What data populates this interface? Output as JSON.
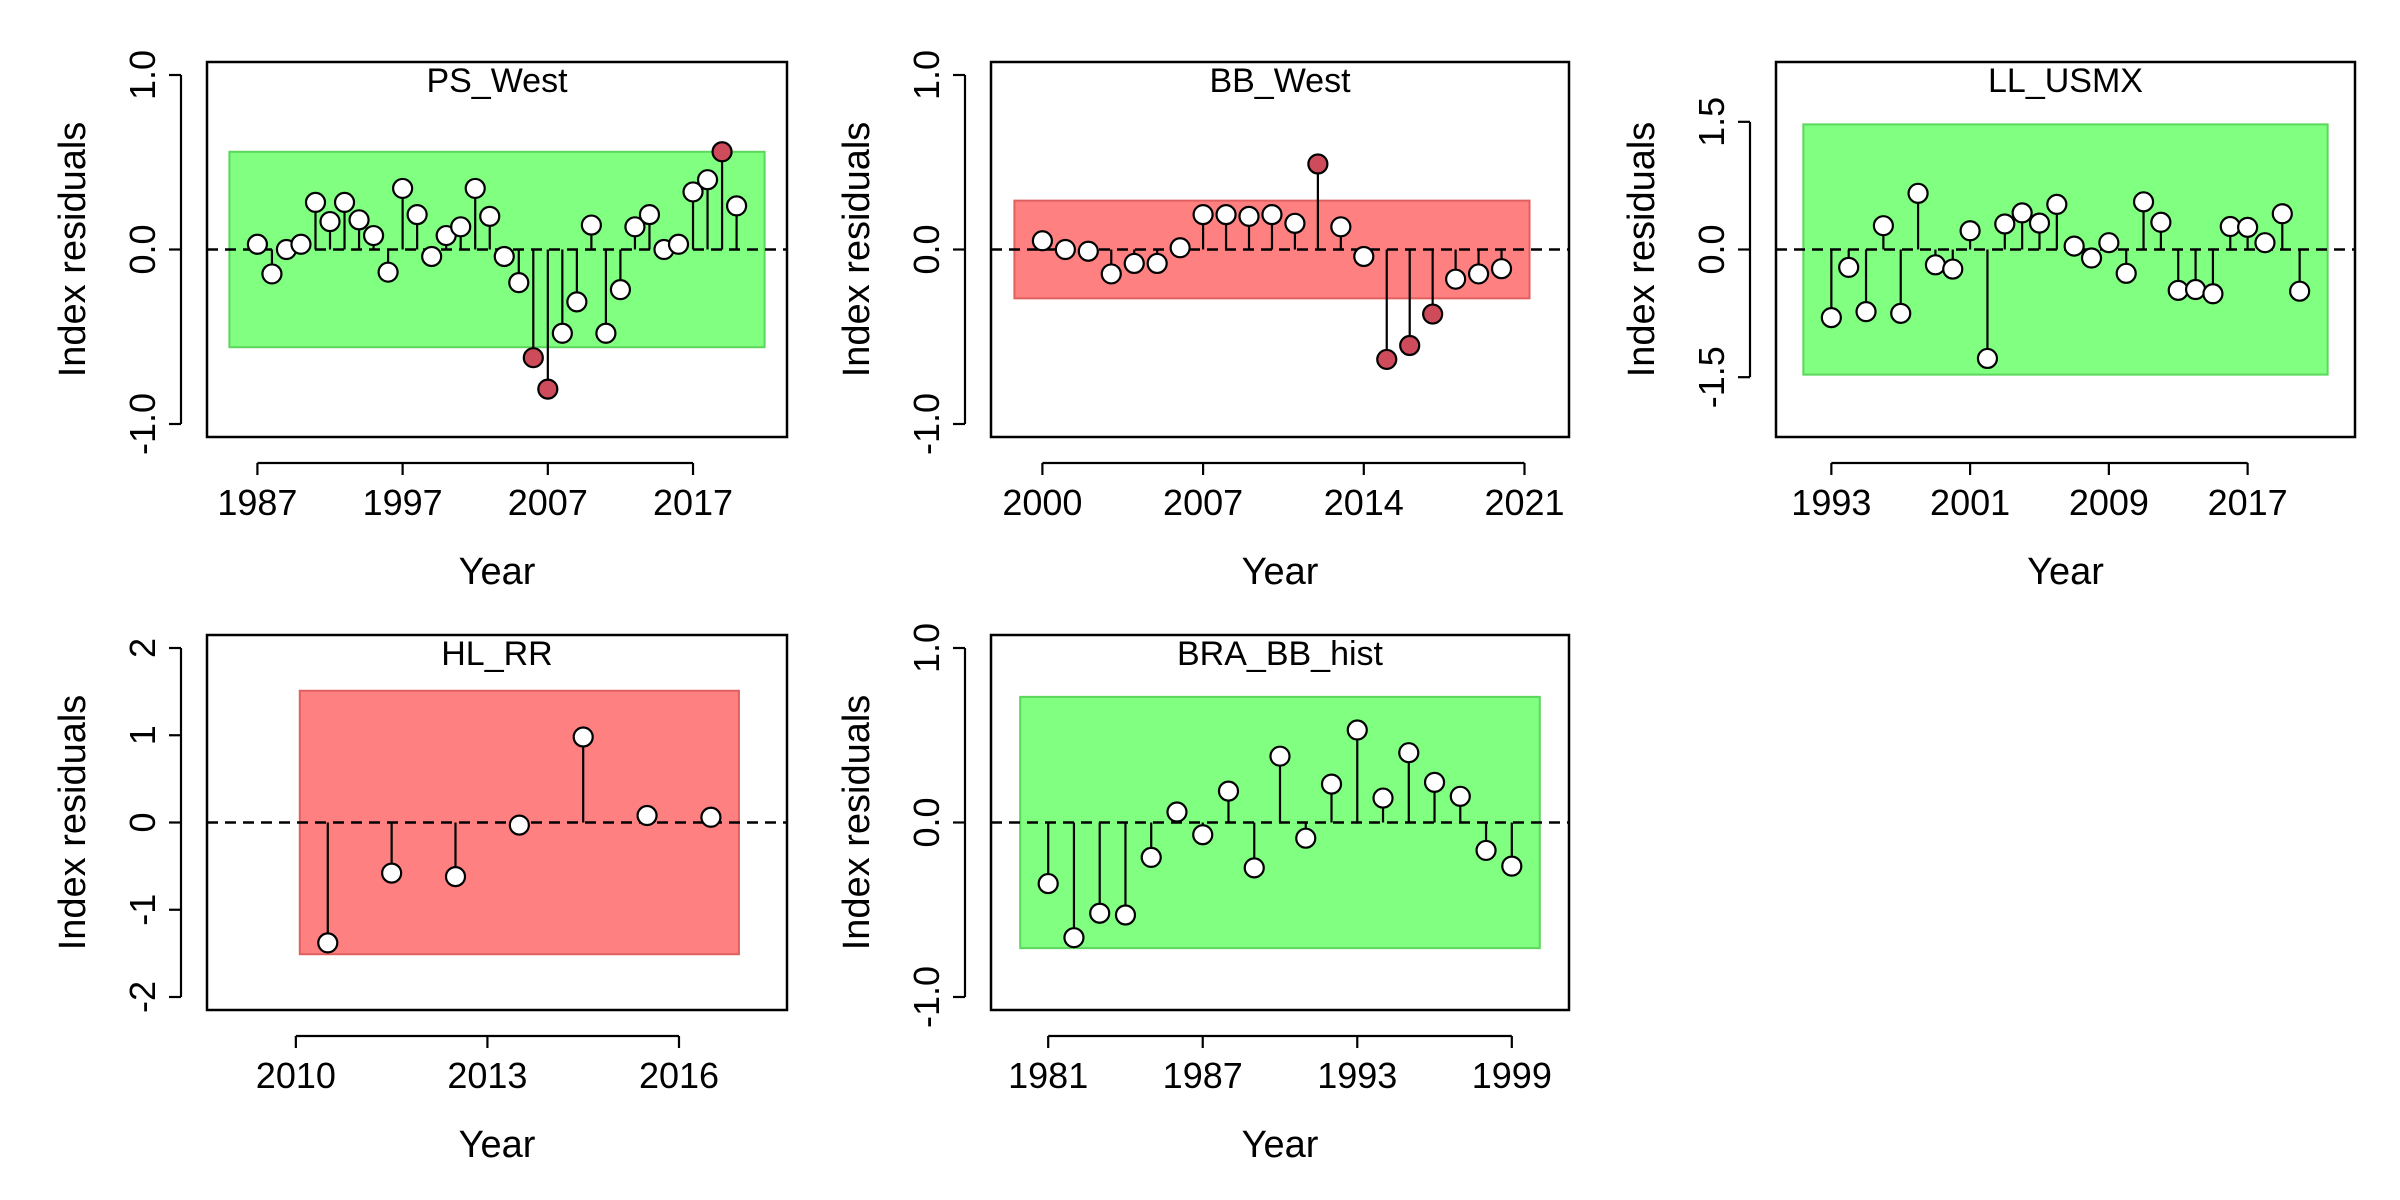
{
  "colors": {
    "pass_fill": "#80FF80",
    "pass_border": "#5CD65C",
    "fail_fill": "#FF8080",
    "fail_border": "#E06060",
    "point_ok": "#FFFFFF",
    "point_outlier": "#CD4B5A"
  },
  "common": {
    "xlabel": "Year",
    "ylabel": "Index residuals"
  },
  "chart_data": [
    {
      "type": "scatter",
      "title": "PS_West",
      "xlabel": "Year",
      "ylabel": "Index residuals",
      "xlim": [
        1985.25,
        2021.75
      ],
      "ylim": [
        -1.0,
        1.0
      ],
      "yticks": [
        "-1.0",
        "0.0",
        "1.0"
      ],
      "xticks": [
        1987,
        1997,
        2007,
        2017
      ],
      "band": 0.56,
      "test": "pass",
      "grid": false,
      "x": [
        1987,
        1988,
        1989,
        1990,
        1991,
        1992,
        1993,
        1994,
        1995,
        1996,
        1997,
        1998,
        1999,
        2000,
        2001,
        2002,
        2003,
        2004,
        2005,
        2006,
        2007,
        2008,
        2009,
        2010,
        2011,
        2012,
        2013,
        2014,
        2015,
        2016,
        2017,
        2018,
        2019,
        2020
      ],
      "values": [
        0.03,
        -0.14,
        0.0,
        0.03,
        0.27,
        0.16,
        0.27,
        0.17,
        0.08,
        -0.13,
        0.35,
        0.2,
        -0.04,
        0.08,
        0.13,
        0.35,
        0.19,
        -0.04,
        -0.19,
        -0.62,
        -0.8,
        -0.48,
        -0.3,
        0.14,
        -0.48,
        -0.23,
        0.13,
        0.2,
        0.0,
        0.03,
        0.33,
        0.4,
        0.56,
        0.25
      ],
      "outliers": [
        19,
        20,
        32
      ]
    },
    {
      "type": "scatter",
      "title": "BB_West",
      "xlabel": "Year",
      "ylabel": "Index residuals",
      "xlim": [
        1998.85,
        2021.85
      ],
      "ylim": [
        -1.0,
        1.0
      ],
      "yticks": [
        "-1.0",
        "0.0",
        "1.0"
      ],
      "xticks": [
        2000,
        2007,
        2014,
        2021
      ],
      "band": 0.28,
      "test": "fail",
      "grid": false,
      "x": [
        2000,
        2001,
        2002,
        2003,
        2004,
        2005,
        2006,
        2007,
        2008,
        2009,
        2010,
        2011,
        2012,
        2013,
        2014,
        2015,
        2016,
        2017,
        2018,
        2019,
        2020
      ],
      "values": [
        0.05,
        0.0,
        -0.01,
        -0.14,
        -0.08,
        -0.08,
        0.01,
        0.2,
        0.2,
        0.19,
        0.2,
        0.15,
        0.49,
        0.13,
        -0.04,
        -0.63,
        -0.55,
        -0.37,
        -0.17,
        -0.14,
        -0.11
      ],
      "outliers": [
        12,
        15,
        16,
        17
      ]
    },
    {
      "type": "scatter",
      "title": "LL_USMX",
      "xlabel": "Year",
      "ylabel": "Index residuals",
      "xlim": [
        1991.25,
        2021.75
      ],
      "ylim": [
        -2.05,
        2.05
      ],
      "yticks": [
        "-1.5",
        "0.0",
        "1.5"
      ],
      "xticks": [
        1993,
        2001,
        2009,
        2017
      ],
      "band": 1.47,
      "test": "pass",
      "grid": false,
      "x": [
        1993,
        1994,
        1995,
        1996,
        1997,
        1998,
        1999,
        2000,
        2001,
        2002,
        2003,
        2004,
        2005,
        2006,
        2007,
        2008,
        2009,
        2010,
        2011,
        2012,
        2013,
        2014,
        2015,
        2016,
        2017,
        2018,
        2019,
        2020
      ],
      "values": [
        -0.8,
        -0.21,
        -0.73,
        0.28,
        -0.75,
        0.66,
        -0.18,
        -0.23,
        0.22,
        -1.28,
        0.3,
        0.43,
        0.31,
        0.53,
        0.04,
        -0.1,
        0.08,
        -0.28,
        0.56,
        0.32,
        -0.48,
        -0.47,
        -0.52,
        0.27,
        0.26,
        0.08,
        0.42,
        -0.49
      ],
      "outliers": []
    },
    {
      "type": "scatter",
      "title": "HL_RR",
      "xlabel": "Year",
      "ylabel": "Index residuals",
      "xlim": [
        2009.0,
        2017.3
      ],
      "ylim": [
        -2.0,
        2.0
      ],
      "yticks": [
        "-2",
        "-1",
        "0",
        "1",
        "2"
      ],
      "xticks": [
        2010,
        2013,
        2016
      ],
      "band": 1.51,
      "test": "fail",
      "grid": false,
      "x": [
        2010.5,
        2011.5,
        2012.5,
        2013.5,
        2014.5,
        2015.5,
        2016.5
      ],
      "values": [
        -1.38,
        -0.58,
        -0.62,
        -0.03,
        0.98,
        0.08,
        0.06
      ],
      "outliers": []
    },
    {
      "type": "scatter",
      "title": "BRA_BB_hist",
      "xlabel": "Year",
      "ylabel": "Index residuals",
      "xlim": [
        1979.75,
        2000.25
      ],
      "ylim": [
        -1.0,
        1.0
      ],
      "yticks": [
        "-1.0",
        "0.0",
        "1.0"
      ],
      "xticks": [
        1981,
        1987,
        1993,
        1999
      ],
      "band": 0.72,
      "test": "pass",
      "grid": false,
      "x": [
        1981,
        1982,
        1983,
        1984,
        1985,
        1986,
        1987,
        1988,
        1989,
        1990,
        1991,
        1992,
        1993,
        1994,
        1995,
        1996,
        1997,
        1998,
        1999
      ],
      "values": [
        -0.35,
        -0.66,
        -0.52,
        -0.53,
        -0.2,
        0.06,
        -0.07,
        0.18,
        -0.26,
        0.38,
        -0.09,
        0.22,
        0.53,
        0.14,
        0.4,
        0.23,
        0.15,
        -0.16,
        -0.25
      ],
      "outliers": []
    }
  ]
}
